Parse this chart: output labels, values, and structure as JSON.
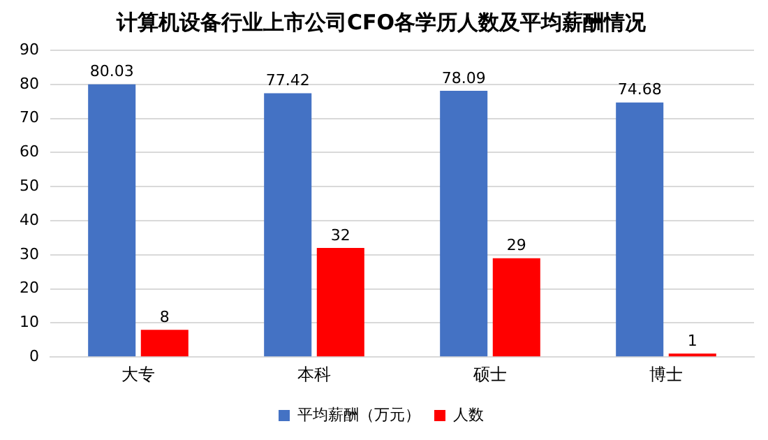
{
  "chart_data": {
    "type": "bar",
    "title": "计算机设备行业上市公司CFO各学历人数及平均薪酬情况",
    "categories": [
      "大专",
      "本科",
      "硕士",
      "博士"
    ],
    "series": [
      {
        "name": "平均薪酬（万元）",
        "color": "#4472c4",
        "values": [
          80.03,
          77.42,
          78.09,
          74.68
        ]
      },
      {
        "name": "人数",
        "color": "#ff0000",
        "values": [
          8,
          32,
          29,
          1
        ]
      }
    ],
    "ylim": [
      0,
      90
    ],
    "yticks": [
      0,
      10,
      20,
      30,
      40,
      50,
      60,
      70,
      80,
      90
    ],
    "grid": "y",
    "legend": "bottom",
    "data_labels": true
  }
}
